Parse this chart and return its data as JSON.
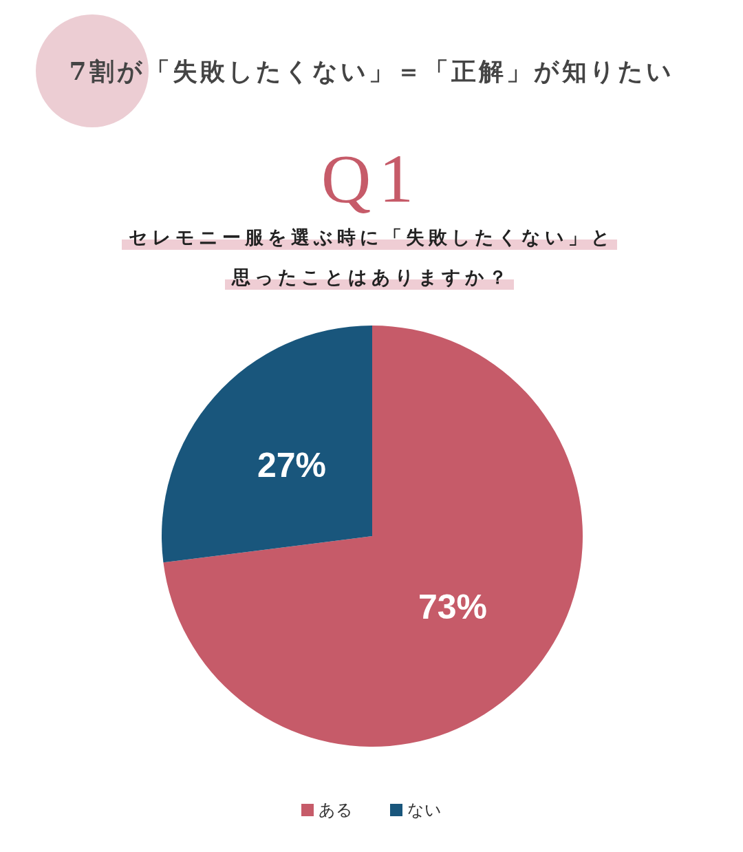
{
  "chart_data": {
    "type": "pie",
    "title": "7割が「失敗したくない」＝「正解」が知りたい",
    "subtitle": "セレモニー服を選ぶ時に「失敗したくない」と思ったことはありますか？",
    "annotations": [
      "Q1"
    ],
    "categories": [
      "ある",
      "ない"
    ],
    "values": [
      73,
      27
    ],
    "colors": [
      "#c65b69",
      "#19567c"
    ],
    "value_labels": [
      "73%",
      "27%"
    ],
    "legend": "bottom"
  }
}
